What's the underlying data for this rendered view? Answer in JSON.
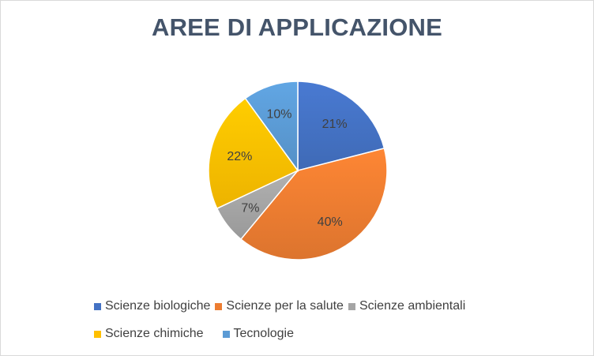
{
  "chart_data": {
    "type": "pie",
    "title": "AREE DI APPLICAZIONE",
    "categories": [
      "Scienze biologiche",
      "Scienze per la salute",
      "Scienze ambientali",
      "Scienze chimiche",
      "Tecnologie"
    ],
    "values": [
      21,
      40,
      7,
      22,
      10
    ],
    "labels": [
      "21%",
      "40%",
      "7%",
      "22%",
      "10%"
    ],
    "colors": [
      "#4472c4",
      "#ed7d31",
      "#a5a5a5",
      "#ffc000",
      "#5b9bd5"
    ],
    "legend_position": "bottom"
  }
}
